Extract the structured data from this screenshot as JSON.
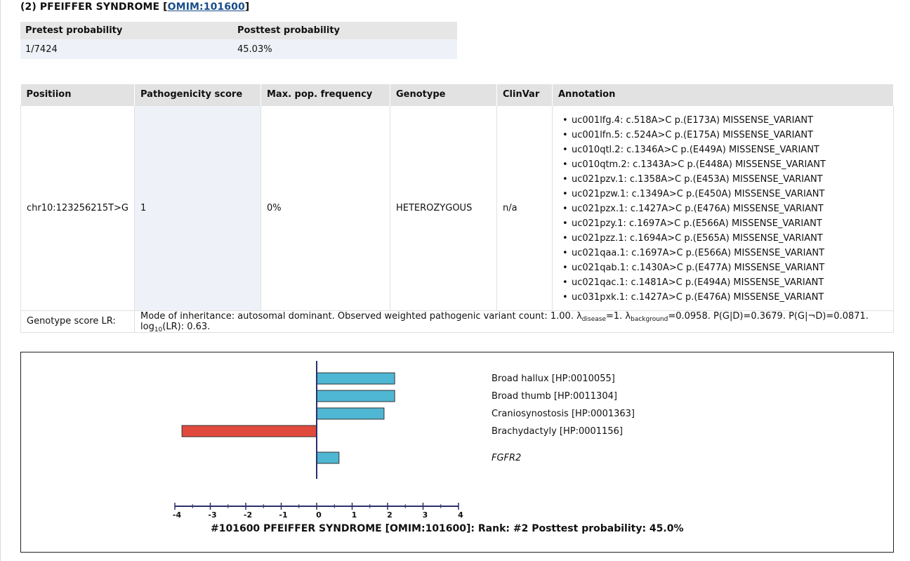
{
  "heading": {
    "prefix": "(2) PFEIFFER SYNDROME [",
    "omim_link": "OMIM:101600",
    "suffix": "]"
  },
  "probability": {
    "headers": [
      "Pretest probability",
      "Posttest probability"
    ],
    "pretest": "1/7424",
    "posttest": "45.03%"
  },
  "variants": {
    "headers": [
      "Positiion",
      "Pathogenicity score",
      "Max. pop. frequency",
      "Genotype",
      "ClinVar",
      "Annotation"
    ],
    "position": "chr10:123256215T>G",
    "pathogenicity": "1",
    "max_pop_freq": "0%",
    "genotype": "HETEROZYGOUS",
    "clinvar": "n/a",
    "annotations": [
      "uc001lfg.4: c.518A>C p.(E173A) MISSENSE_VARIANT",
      "uc001lfn.5: c.524A>C p.(E175A) MISSENSE_VARIANT",
      "uc010qtl.2: c.1346A>C p.(E449A) MISSENSE_VARIANT",
      "uc010qtm.2: c.1343A>C p.(E448A) MISSENSE_VARIANT",
      "uc021pzv.1: c.1358A>C p.(E453A) MISSENSE_VARIANT",
      "uc021pzw.1: c.1349A>C p.(E450A) MISSENSE_VARIANT",
      "uc021pzx.1: c.1427A>C p.(E476A) MISSENSE_VARIANT",
      "uc021pzy.1: c.1697A>C p.(E566A) MISSENSE_VARIANT",
      "uc021pzz.1: c.1694A>C p.(E565A) MISSENSE_VARIANT",
      "uc021qaa.1: c.1697A>C p.(E566A) MISSENSE_VARIANT",
      "uc021qab.1: c.1430A>C p.(E477A) MISSENSE_VARIANT",
      "uc021qac.1: c.1481A>C p.(E494A) MISSENSE_VARIANT",
      "uc031pxk.1: c.1427A>C p.(E476A) MISSENSE_VARIANT"
    ]
  },
  "genotype_lr": {
    "label": "Genotype score LR:",
    "text_1": "Mode of inheritance: autosomal dominant. Observed weighted pathogenic variant count: 1.00. λ",
    "sub_1": "disease",
    "text_2": "=1. λ",
    "sub_2": "background",
    "text_3": "=0.0958. P(G|D)=0.3679. P(G|¬D)=0.0871. log",
    "sub_3": "10",
    "text_4": "(LR): 0.63."
  },
  "chart_data": {
    "type": "bar",
    "orientation": "horizontal",
    "title": "#101600 PFEIFFER SYNDROME [OMIM:101600]: Rank: #2 Posttest probability: 45.0%",
    "categories": [
      "Broad hallux [HP:0010055]",
      "Broad thumb [HP:0011304]",
      "Craniosynostosis [HP:0001363]",
      "Brachydactyly [HP:0001156]",
      "FGFR2"
    ],
    "values": [
      2.2,
      2.2,
      1.9,
      -3.8,
      0.63
    ],
    "italic_categories": [
      "FGFR2"
    ],
    "xlim": [
      -4,
      4
    ],
    "ticks": [
      "-4",
      "-3",
      "-2",
      "-1",
      "0",
      "1",
      "2",
      "3",
      "4"
    ],
    "colors": {
      "positive": "#4fb7d3",
      "negative": "#e04a3d",
      "axis": "#2b2f6b"
    }
  }
}
